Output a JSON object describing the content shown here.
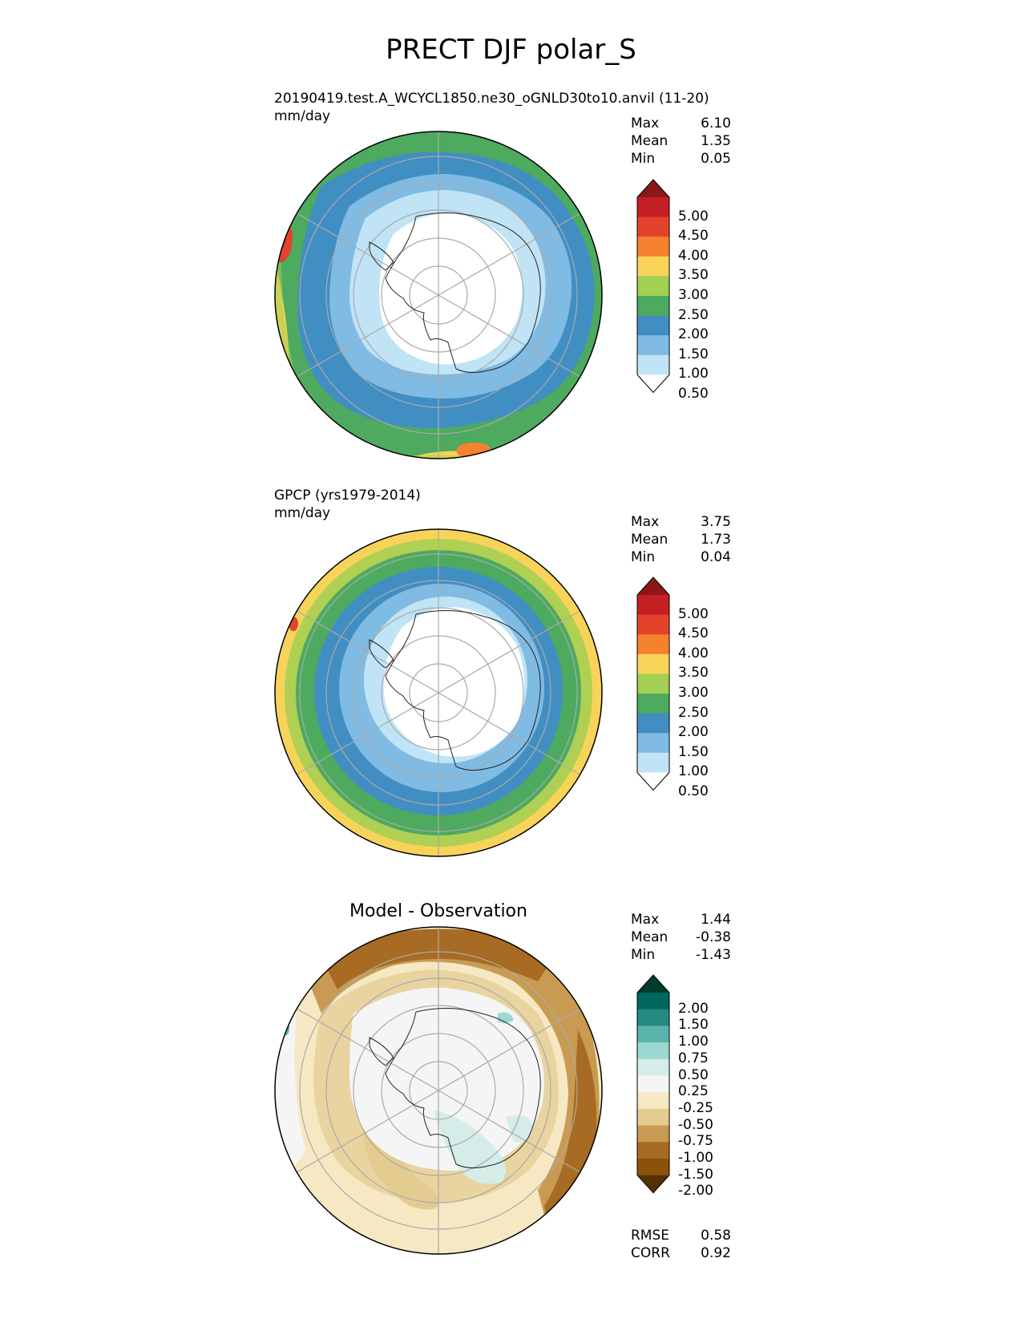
{
  "title": "PRECT DJF polar_S",
  "panels": [
    {
      "id": "model",
      "subtitle_line1": "20190419.test.A_WCYCL1850.ne30_oGNLD30to10.anvil (11-20)",
      "subtitle_line2": "mm/day",
      "stats": [
        {
          "label": "Max",
          "value": "6.10"
        },
        {
          "label": "Mean",
          "value": "1.35"
        },
        {
          "label": "Min",
          "value": "0.05"
        }
      ],
      "colorbar": {
        "labels": [
          "5.00",
          "4.50",
          "4.00",
          "3.50",
          "3.00",
          "2.50",
          "2.00",
          "1.50",
          "1.00",
          "0.50"
        ],
        "colors": [
          "#8c1719",
          "#c51f26",
          "#e3432b",
          "#f6812f",
          "#f8d35a",
          "#a3cf52",
          "#4daa5f",
          "#418ec3",
          "#80bbe3",
          "#c0e4f6",
          "#ffffff"
        ]
      }
    },
    {
      "id": "obs",
      "subtitle_line1": "GPCP (yrs1979-2014)",
      "subtitle_line2": "mm/day",
      "stats": [
        {
          "label": "Max",
          "value": "3.75"
        },
        {
          "label": "Mean",
          "value": "1.73"
        },
        {
          "label": "Min",
          "value": "0.04"
        }
      ],
      "colorbar": {
        "labels": [
          "5.00",
          "4.50",
          "4.00",
          "3.50",
          "3.00",
          "2.50",
          "2.00",
          "1.50",
          "1.00",
          "0.50"
        ],
        "colors": [
          "#8c1719",
          "#c51f26",
          "#e3432b",
          "#f6812f",
          "#f8d35a",
          "#a3cf52",
          "#4daa5f",
          "#418ec3",
          "#80bbe3",
          "#c0e4f6",
          "#ffffff"
        ]
      }
    },
    {
      "id": "diff",
      "title": "Model - Observation",
      "stats": [
        {
          "label": "Max",
          "value": "1.44"
        },
        {
          "label": "Mean",
          "value": "-0.38"
        },
        {
          "label": "Min",
          "value": "-1.43"
        }
      ],
      "colorbar": {
        "labels": [
          "2.00",
          "1.50",
          "1.00",
          "0.75",
          "0.50",
          "0.25",
          "-0.25",
          "-0.50",
          "-0.75",
          "-1.00",
          "-1.50",
          "-2.00"
        ],
        "colors": [
          "#003c30",
          "#01665e",
          "#238b81",
          "#5ab4ac",
          "#9cd8cf",
          "#d5ede9",
          "#f5f5f5",
          "#f6e8c3",
          "#e4cc91",
          "#c99b52",
          "#a86b23",
          "#8c510a",
          "#543005"
        ]
      },
      "metrics": [
        {
          "label": "RMSE",
          "value": "0.58"
        },
        {
          "label": "CORR",
          "value": "0.92"
        }
      ]
    }
  ]
}
